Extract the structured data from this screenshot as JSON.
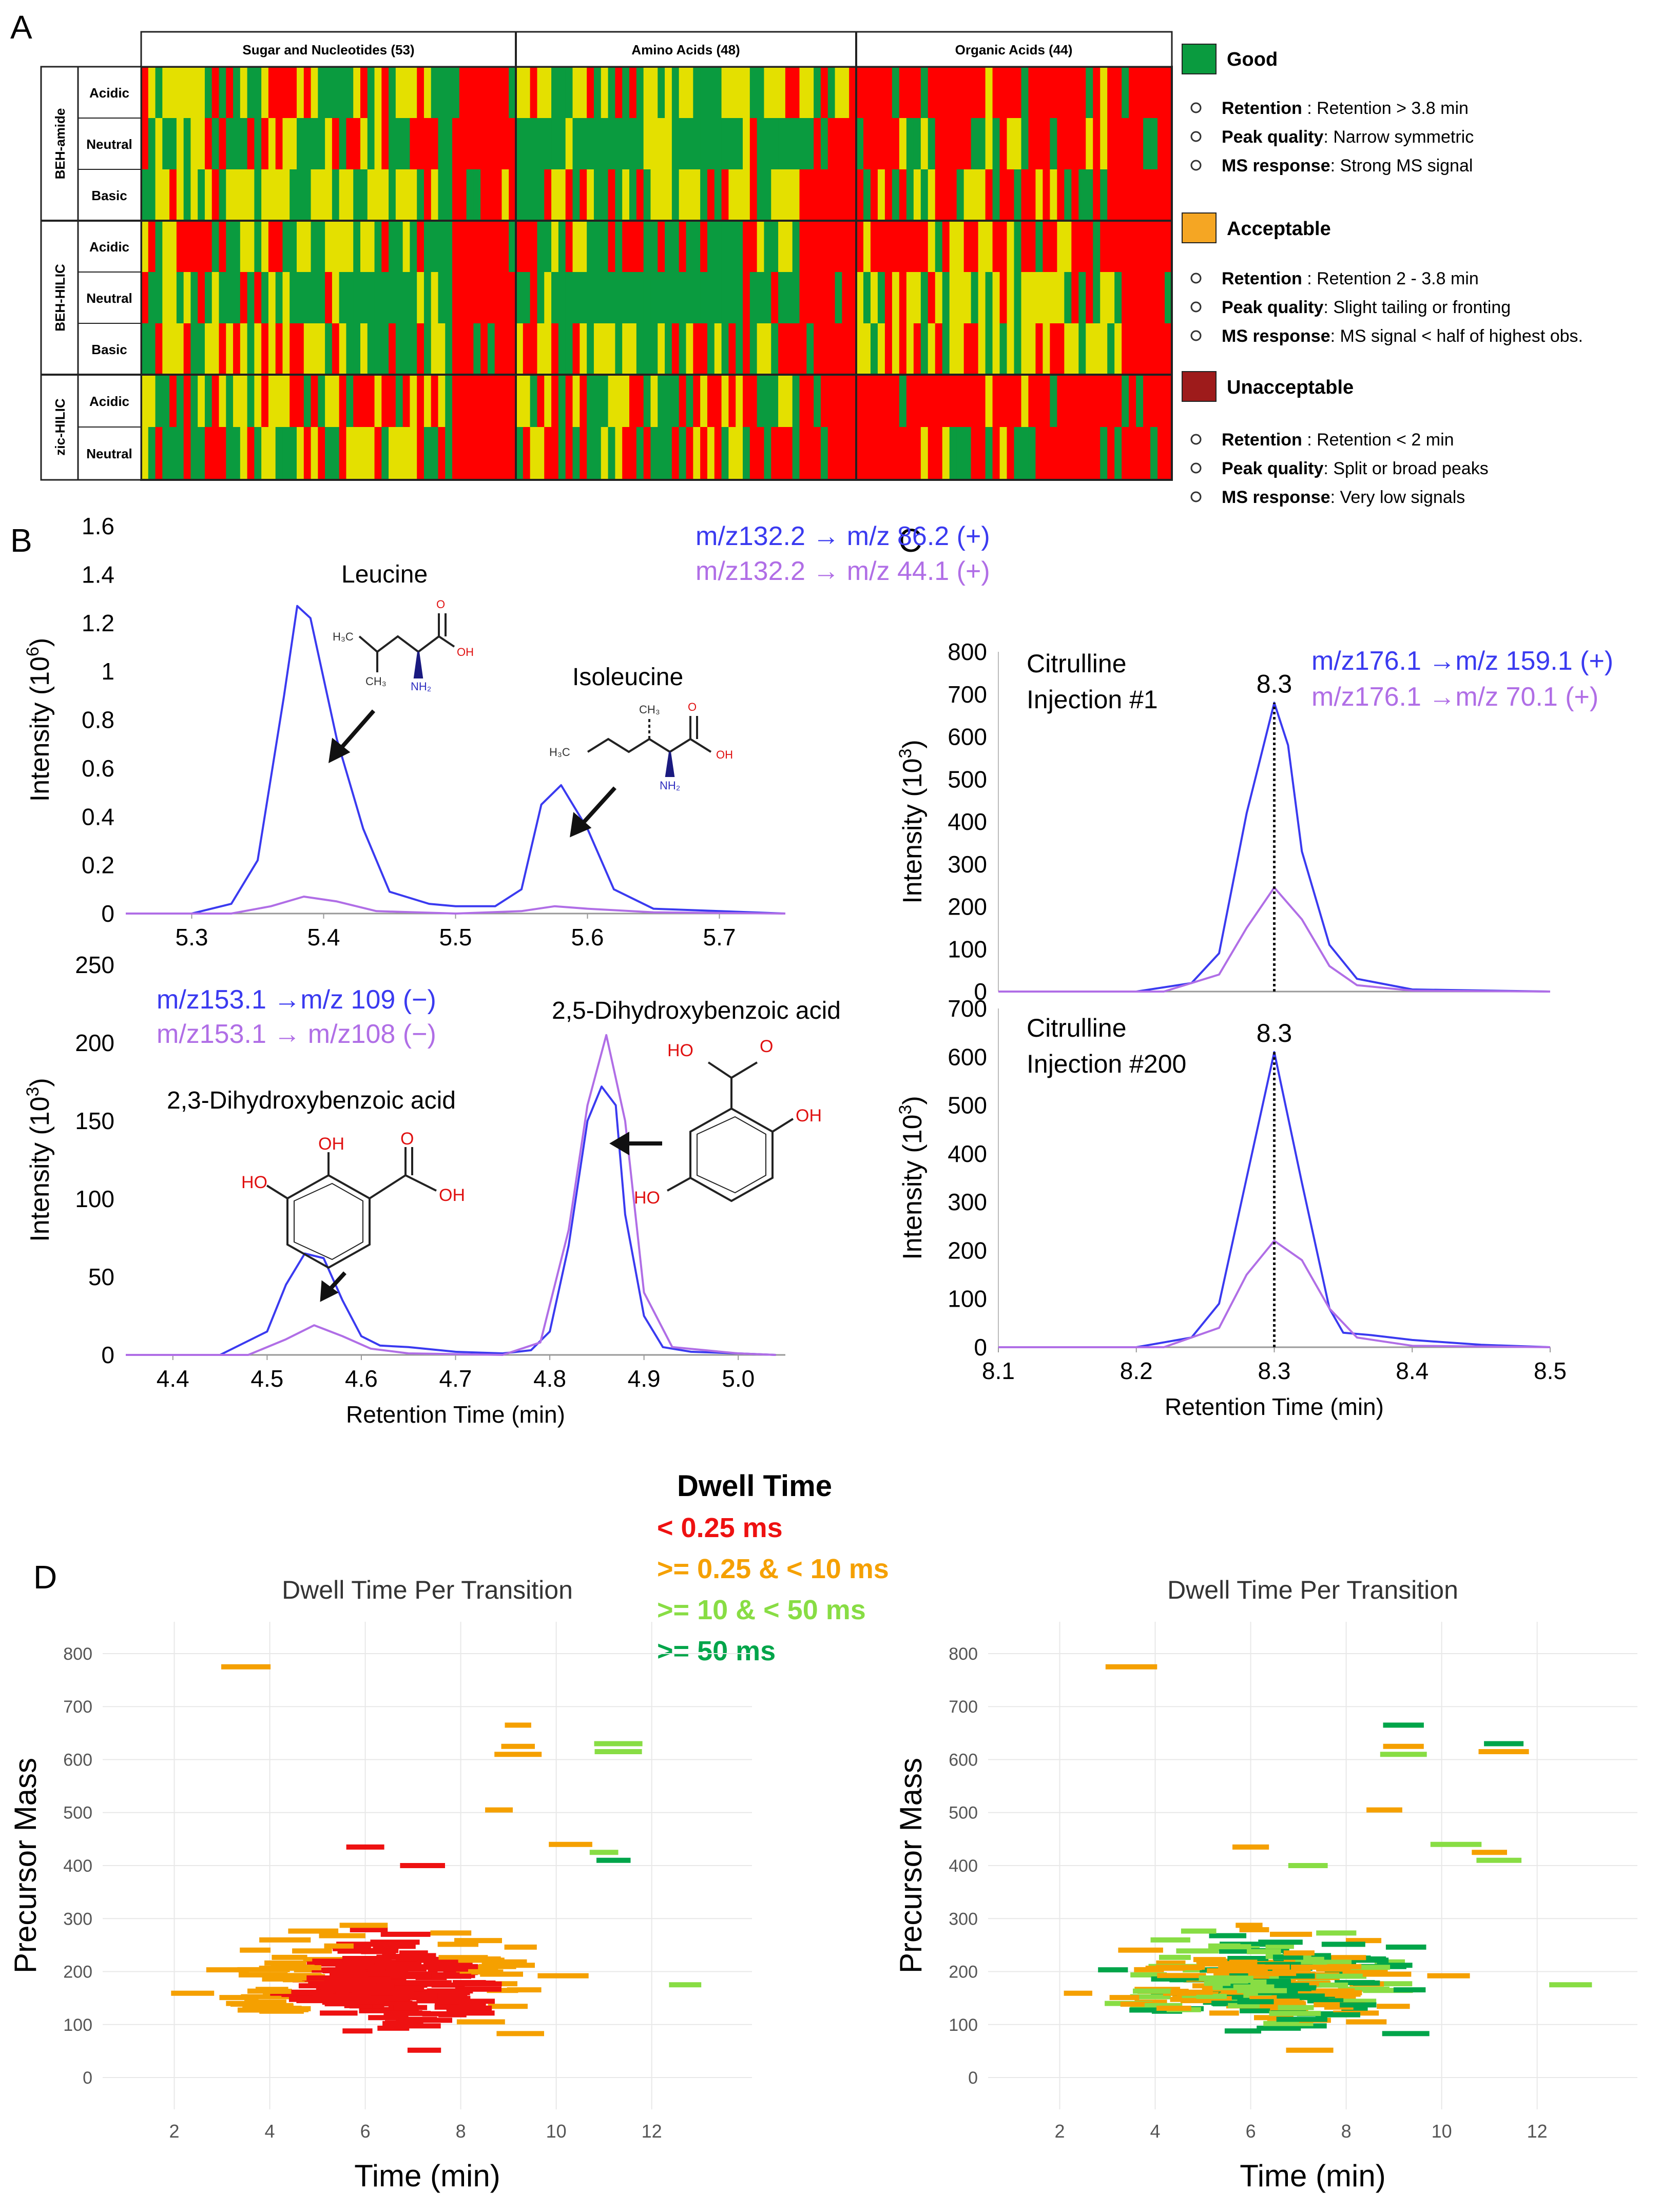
{
  "panels": {
    "A": "A",
    "B": "B",
    "C": "C",
    "D": "D"
  },
  "panel_a": {
    "groups": [
      {
        "label": "Sugar and Nucleotides (53)",
        "n": 53
      },
      {
        "label": "Amino Acids (48)",
        "n": 48
      },
      {
        "label": "Organic Acids (44)",
        "n": 44
      }
    ],
    "columns": [
      {
        "label": "BEH-amide",
        "rows": [
          "Acidic",
          "Neutral",
          "Basic"
        ]
      },
      {
        "label": "BEH-HILIC",
        "rows": [
          "Acidic",
          "Neutral",
          "Basic"
        ]
      },
      {
        "label": "zic-HILIC",
        "rows": [
          "Acidic",
          "Neutral"
        ]
      }
    ],
    "legend": [
      {
        "title": "Good",
        "color": "#0a9b3f",
        "items": [
          {
            "k": "Retention",
            "v": " : Retention > 3.8 min"
          },
          {
            "k": "Peak quality",
            "v": ": Narrow symmetric"
          },
          {
            "k": "MS response",
            "v": ": Strong MS signal"
          }
        ]
      },
      {
        "title": "Acceptable",
        "color": "#f5a623",
        "items": [
          {
            "k": "Retention",
            "v": " : Retention 2 - 3.8 min"
          },
          {
            "k": "Peak quality",
            "v": ": Slight tailing or fronting"
          },
          {
            "k": "MS response",
            "v": ": MS signal < half of highest obs."
          }
        ]
      },
      {
        "title": "Unacceptable",
        "color": "#9e1b1b",
        "items": [
          {
            "k": "Retention",
            "v": " : Retention < 2 min"
          },
          {
            "k": "Peak quality",
            "v": ": Split or broad peaks"
          },
          {
            "k": "MS response",
            "v": ":  Very low signals"
          }
        ]
      }
    ],
    "cell_colors": {
      "good": "#0a9b3f",
      "acceptable": "#e4e000",
      "unacceptable": "#ff0000"
    }
  },
  "chart_data": [
    {
      "id": "B1",
      "type": "line",
      "ylabel": "Intensity (10^6)",
      "ylabel_main": "Intensity (10",
      "ylabel_exp": "6",
      "ylabel_end": ")",
      "xlim": [
        5.25,
        5.75
      ],
      "ylim": [
        0,
        1.6
      ],
      "xticks": [
        "5.3",
        "5.4",
        "5.5",
        "5.6",
        "5.7"
      ],
      "yticks": [
        "0",
        "0.2",
        "0.4",
        "0.6",
        "0.8",
        "1",
        "1.2",
        "1.4",
        "1.6"
      ],
      "series": [
        {
          "name": "m/z132.2 → m/z 86.2 (+)",
          "color": "#3a3af0",
          "x": [
            5.25,
            5.3,
            5.33,
            5.35,
            5.37,
            5.38,
            5.39,
            5.41,
            5.43,
            5.45,
            5.48,
            5.5,
            5.53,
            5.55,
            5.565,
            5.58,
            5.6,
            5.62,
            5.65,
            5.7,
            5.75
          ],
          "y": [
            0,
            0,
            0.04,
            0.22,
            0.9,
            1.27,
            1.22,
            0.72,
            0.35,
            0.09,
            0.04,
            0.03,
            0.03,
            0.1,
            0.45,
            0.53,
            0.35,
            0.1,
            0.02,
            0.01,
            0
          ]
        },
        {
          "name": "m/z132.2 → m/z 44.1 (+)",
          "color": "#b06ee6",
          "x": [
            5.25,
            5.33,
            5.36,
            5.385,
            5.41,
            5.44,
            5.5,
            5.55,
            5.575,
            5.6,
            5.65,
            5.75
          ],
          "y": [
            0,
            0,
            0.03,
            0.07,
            0.05,
            0.01,
            0,
            0.01,
            0.03,
            0.02,
            0.005,
            0
          ]
        }
      ],
      "annotations": [
        "Leucine",
        "Isoleucine"
      ]
    },
    {
      "id": "B2",
      "type": "line",
      "ylabel": "Intensity (10^3)",
      "ylabel_main": "Intensity (10",
      "ylabel_exp": "3",
      "ylabel_end": ")",
      "xlabel": "Retention Time (min)",
      "xlim": [
        4.35,
        5.05
      ],
      "ylim": [
        0,
        250
      ],
      "xticks": [
        "4.4",
        "4.5",
        "4.6",
        "4.7",
        "4.8",
        "4.9",
        "5.0"
      ],
      "yticks": [
        "0",
        "50",
        "100",
        "150",
        "200",
        "250"
      ],
      "series": [
        {
          "name": "m/z153.1 →m/z 109 (−)",
          "color": "#3a3af0",
          "x": [
            4.35,
            4.45,
            4.5,
            4.52,
            4.54,
            4.56,
            4.58,
            4.6,
            4.62,
            4.65,
            4.7,
            4.75,
            4.78,
            4.8,
            4.82,
            4.84,
            4.855,
            4.87,
            4.88,
            4.9,
            4.92,
            4.95,
            5.0,
            5.04
          ],
          "y": [
            0,
            0,
            15,
            45,
            65,
            62,
            35,
            12,
            6,
            5,
            2,
            1,
            3,
            15,
            70,
            150,
            172,
            160,
            90,
            25,
            5,
            2,
            1,
            0
          ]
        },
        {
          "name": "m/z153.1 → m/z108 (−)",
          "color": "#b06ee6",
          "x": [
            4.35,
            4.48,
            4.52,
            4.55,
            4.58,
            4.61,
            4.65,
            4.75,
            4.79,
            4.82,
            4.84,
            4.86,
            4.88,
            4.9,
            4.93,
            5.0,
            5.04
          ],
          "y": [
            0,
            0,
            10,
            19,
            12,
            4,
            1,
            0,
            8,
            80,
            160,
            205,
            150,
            40,
            5,
            1,
            0
          ]
        }
      ],
      "annotations": [
        "2,5-Dihydroxybenzoic acid",
        "2,3-Dihydroxybenzoic acid"
      ]
    },
    {
      "id": "C1",
      "type": "line",
      "ylabel": "Intensity (10^3)",
      "ylabel_main": "Intensity (10",
      "ylabel_exp": "3",
      "ylabel_end": ")",
      "xlim": [
        8.1,
        8.5
      ],
      "ylim": [
        0,
        800
      ],
      "yticks": [
        "0",
        "100",
        "200",
        "300",
        "400",
        "500",
        "600",
        "700",
        "800"
      ],
      "title": "Citrulline",
      "subtitle": "Injection #1",
      "peak_label": "8.3",
      "series": [
        {
          "name": "m/z176.1 →m/z 159.1 (+)",
          "color": "#3a3af0",
          "x": [
            8.1,
            8.2,
            8.24,
            8.26,
            8.28,
            8.3,
            8.31,
            8.32,
            8.34,
            8.36,
            8.4,
            8.5
          ],
          "y": [
            0,
            0,
            20,
            90,
            420,
            680,
            580,
            330,
            110,
            30,
            5,
            0
          ]
        },
        {
          "name": "m/z176.1 →m/z 70.1 (+)",
          "color": "#b06ee6",
          "x": [
            8.1,
            8.22,
            8.26,
            8.28,
            8.3,
            8.32,
            8.34,
            8.36,
            8.4,
            8.5
          ],
          "y": [
            0,
            0,
            40,
            150,
            245,
            170,
            60,
            15,
            2,
            0
          ]
        }
      ]
    },
    {
      "id": "C2",
      "type": "line",
      "ylabel": "Intensity (10^3)",
      "ylabel_main": "Intensity (10",
      "ylabel_exp": "3",
      "ylabel_end": ")",
      "xlabel": "Retention Time (min)",
      "xlim": [
        8.1,
        8.5
      ],
      "ylim": [
        0,
        700
      ],
      "xticks": [
        "8.1",
        "8.2",
        "8.3",
        "8.4",
        "8.5"
      ],
      "yticks": [
        "0",
        "100",
        "200",
        "300",
        "400",
        "500",
        "600",
        "700"
      ],
      "title": "Citrulline",
      "subtitle": "Injection #200",
      "peak_label": "8.3",
      "series": [
        {
          "name": "m/z176.1 →m/z 159.1 (+)",
          "color": "#3a3af0",
          "x": [
            8.1,
            8.2,
            8.24,
            8.26,
            8.28,
            8.3,
            8.32,
            8.34,
            8.35,
            8.37,
            8.4,
            8.45,
            8.5
          ],
          "y": [
            0,
            0,
            20,
            90,
            350,
            610,
            340,
            80,
            30,
            25,
            15,
            5,
            0
          ]
        },
        {
          "name": "m/z176.1 →m/z 70.1 (+)",
          "color": "#b06ee6",
          "x": [
            8.1,
            8.22,
            8.26,
            8.28,
            8.3,
            8.32,
            8.34,
            8.36,
            8.4,
            8.5
          ],
          "y": [
            0,
            0,
            40,
            150,
            220,
            180,
            80,
            20,
            3,
            0
          ]
        }
      ]
    },
    {
      "id": "D",
      "type": "scatter",
      "title": "Dwell Time Per Transition",
      "xlabel": "Time (min)",
      "ylabel": "Precursor Mass",
      "xlim": [
        0.5,
        14.1
      ],
      "ylim": [
        -60,
        860
      ],
      "xticks": [
        "2",
        "4",
        "6",
        "8",
        "10",
        "12"
      ],
      "yticks": [
        "0",
        "100",
        "200",
        "300",
        "400",
        "500",
        "600",
        "700",
        "800"
      ],
      "legend_title": "Dwell Time",
      "legend": [
        {
          "label": "< 0.25 ms",
          "color": "#ee1111"
        },
        {
          "label": ">= 0.25 & < 10 ms",
          "color": "#f5a000"
        },
        {
          "label": ">= 10 & < 50 ms",
          "color": "#88dd44"
        },
        {
          "label": ">= 50 ms",
          "color": "#00a54a"
        }
      ]
    }
  ]
}
